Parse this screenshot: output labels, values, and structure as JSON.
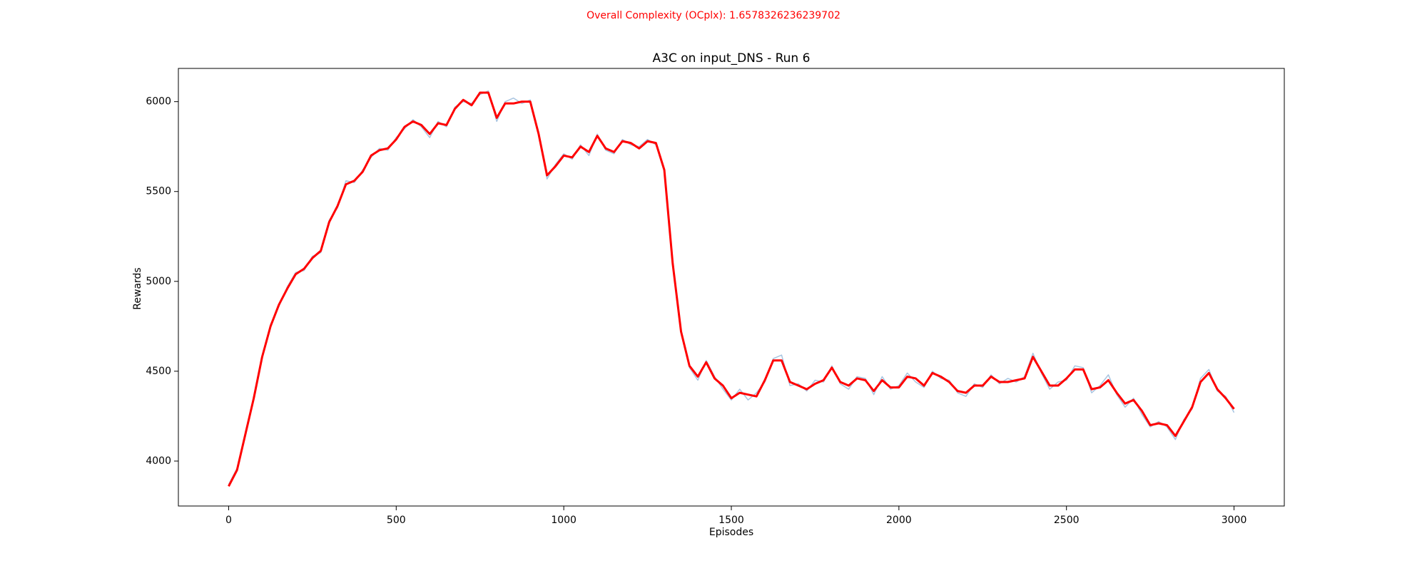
{
  "chart_data": {
    "type": "line",
    "suptitle": "Overall Complexity (OCplx): 1.6578326236239702",
    "suptitle_color": "#ff0000",
    "title": "A3C on input_DNS - Run 6",
    "xlabel": "Episodes",
    "ylabel": "Rewards",
    "x": [
      0,
      25,
      50,
      75,
      100,
      125,
      150,
      175,
      200,
      225,
      250,
      275,
      300,
      325,
      350,
      375,
      400,
      425,
      450,
      475,
      500,
      525,
      550,
      575,
      600,
      625,
      650,
      675,
      700,
      725,
      750,
      775,
      800,
      825,
      850,
      875,
      900,
      925,
      950,
      975,
      1000,
      1025,
      1050,
      1075,
      1100,
      1125,
      1150,
      1175,
      1200,
      1225,
      1250,
      1275,
      1300,
      1325,
      1350,
      1375,
      1400,
      1425,
      1450,
      1475,
      1500,
      1525,
      1550,
      1575,
      1600,
      1625,
      1650,
      1675,
      1700,
      1725,
      1750,
      1775,
      1800,
      1825,
      1850,
      1875,
      1900,
      1925,
      1950,
      1975,
      2000,
      2025,
      2050,
      2075,
      2100,
      2125,
      2150,
      2175,
      2200,
      2225,
      2250,
      2275,
      2300,
      2325,
      2350,
      2375,
      2400,
      2425,
      2450,
      2475,
      2500,
      2525,
      2550,
      2575,
      2600,
      2625,
      2650,
      2675,
      2700,
      2725,
      2750,
      2775,
      2800,
      2825,
      2850,
      2875,
      2900,
      2925,
      2950,
      2975,
      3000
    ],
    "series": [
      {
        "color": "#a8c4e0",
        "width": 1.5,
        "values": [
          3870,
          3960,
          4140,
          4360,
          4570,
          4760,
          4860,
          4970,
          5050,
          5060,
          5140,
          5160,
          5340,
          5410,
          5560,
          5550,
          5620,
          5690,
          5740,
          5730,
          5800,
          5850,
          5900,
          5860,
          5800,
          5890,
          5860,
          5970,
          6000,
          5990,
          6040,
          6060,
          5890,
          6000,
          6020,
          5990,
          6010,
          5830,
          5570,
          5650,
          5710,
          5680,
          5760,
          5700,
          5820,
          5730,
          5710,
          5790,
          5760,
          5750,
          5790,
          5760,
          5610,
          5090,
          4730,
          4520,
          4450,
          4560,
          4470,
          4400,
          4340,
          4400,
          4340,
          4380,
          4440,
          4570,
          4590,
          4420,
          4430,
          4390,
          4450,
          4440,
          4530,
          4430,
          4400,
          4470,
          4460,
          4370,
          4470,
          4400,
          4420,
          4490,
          4440,
          4410,
          4500,
          4460,
          4450,
          4380,
          4360,
          4430,
          4410,
          4480,
          4430,
          4460,
          4440,
          4470,
          4600,
          4490,
          4400,
          4440,
          4450,
          4530,
          4520,
          4380,
          4420,
          4480,
          4370,
          4300,
          4350,
          4260,
          4190,
          4220,
          4190,
          4120,
          4230,
          4290,
          4460,
          4510,
          4390,
          4360,
          4270
        ]
      },
      {
        "color": "#ff0000",
        "width": 3,
        "values": [
          3860,
          3950,
          4150,
          4350,
          4580,
          4750,
          4870,
          4960,
          5040,
          5070,
          5130,
          5170,
          5330,
          5420,
          5540,
          5560,
          5610,
          5700,
          5730,
          5740,
          5790,
          5860,
          5890,
          5870,
          5820,
          5880,
          5870,
          5960,
          6010,
          5980,
          6050,
          6050,
          5910,
          5990,
          5990,
          6000,
          6000,
          5820,
          5590,
          5640,
          5700,
          5690,
          5750,
          5720,
          5810,
          5740,
          5720,
          5780,
          5770,
          5740,
          5780,
          5770,
          5620,
          5100,
          4720,
          4530,
          4470,
          4550,
          4460,
          4420,
          4350,
          4380,
          4370,
          4360,
          4450,
          4560,
          4560,
          4440,
          4420,
          4400,
          4430,
          4450,
          4520,
          4440,
          4420,
          4460,
          4450,
          4390,
          4450,
          4410,
          4410,
          4470,
          4460,
          4420,
          4490,
          4470,
          4440,
          4390,
          4380,
          4420,
          4420,
          4470,
          4440,
          4440,
          4450,
          4460,
          4580,
          4500,
          4420,
          4420,
          4460,
          4510,
          4510,
          4400,
          4410,
          4450,
          4380,
          4320,
          4340,
          4280,
          4200,
          4210,
          4200,
          4140,
          4220,
          4300,
          4440,
          4490,
          4400,
          4350,
          4290
        ]
      }
    ],
    "xlim": [
      -150,
      3150
    ],
    "ylim": [
      3750,
      6185
    ],
    "xticks": [
      0,
      500,
      1000,
      1500,
      2000,
      2500,
      3000
    ],
    "yticks": [
      4000,
      4500,
      5000,
      5500,
      6000
    ],
    "grid": false
  }
}
